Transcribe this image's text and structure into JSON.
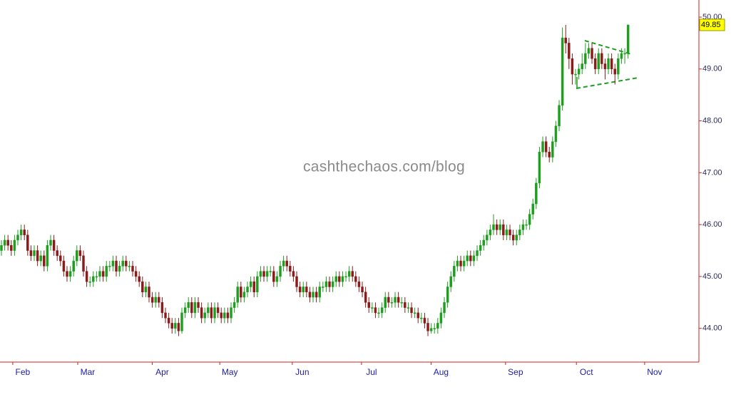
{
  "chart_data": {
    "type": "candlestick",
    "watermark": "cashthechaos.com/blog",
    "up_color": "#1e9e1e",
    "down_color": "#8b1a1a",
    "xlim": [
      -0.435,
      212.6
    ],
    "xticks": [
      {
        "value": 6.5,
        "label": "Feb"
      },
      {
        "value": 26.3,
        "label": "Mar"
      },
      {
        "value": 49,
        "label": "Apr"
      },
      {
        "value": 69.6,
        "label": "May"
      },
      {
        "value": 91.7,
        "label": "Jun"
      },
      {
        "value": 112.8,
        "label": "Jul"
      },
      {
        "value": 134,
        "label": "Aug"
      },
      {
        "value": 156.7,
        "label": "Sep"
      },
      {
        "value": 178.3,
        "label": "Oct"
      },
      {
        "value": 199.1,
        "label": "Nov"
      }
    ],
    "ylim": [
      43.35,
      50.33
    ],
    "yticks": [
      {
        "value": 44,
        "label": "44.00"
      },
      {
        "value": 45,
        "label": "45.00"
      },
      {
        "value": 46,
        "label": "46.00"
      },
      {
        "value": 47,
        "label": "47.00"
      },
      {
        "value": 48,
        "label": "48.00"
      },
      {
        "value": 49,
        "label": "49.00"
      },
      {
        "value": 50,
        "label": "50.00"
      }
    ],
    "last_price_label": "49.85",
    "open": [
      45.5,
      45.6,
      45.7,
      45.6,
      45.5,
      45.7,
      45.8,
      45.9,
      45.8,
      45.5,
      45.4,
      45.5,
      45.3,
      45.4,
      45.2,
      45.6,
      45.7,
      45.5,
      45.4,
      45.3,
      45.1,
      45.0,
      45.1,
      45.3,
      45.5,
      45.4,
      45.1,
      44.9,
      44.9,
      45.0,
      45.0,
      45.1,
      45.0,
      45.2,
      45.2,
      45.3,
      45.1,
      45.2,
      45.3,
      45.2,
      45.2,
      45.1,
      45.0,
      44.9,
      44.7,
      44.8,
      44.6,
      44.5,
      44.6,
      44.5,
      44.3,
      44.2,
      44.1,
      44.0,
      44.1,
      43.95,
      44.3,
      44.4,
      44.5,
      44.3,
      44.5,
      44.4,
      44.2,
      44.3,
      44.4,
      44.2,
      44.4,
      44.3,
      44.2,
      44.3,
      44.2,
      44.4,
      44.5,
      44.8,
      44.6,
      44.7,
      44.8,
      44.9,
      44.7,
      45.0,
      45.1,
      45.0,
      45.1,
      45.1,
      44.9,
      45.0,
      45.2,
      45.3,
      45.2,
      45.1,
      45.0,
      44.8,
      44.7,
      44.8,
      44.7,
      44.6,
      44.7,
      44.6,
      44.8,
      44.8,
      44.9,
      44.8,
      44.9,
      45.0,
      44.9,
      45.0,
      45.0,
      45.1,
      45.0,
      44.9,
      44.8,
      44.7,
      44.5,
      44.4,
      44.4,
      44.3,
      44.3,
      44.4,
      44.6,
      44.5,
      44.5,
      44.6,
      44.5,
      44.5,
      44.4,
      44.4,
      44.3,
      44.3,
      44.2,
      44.2,
      44.1,
      43.95,
      44.0,
      44.0,
      44.1,
      44.3,
      44.5,
      44.8,
      45.0,
      45.2,
      45.3,
      45.2,
      45.3,
      45.4,
      45.3,
      45.4,
      45.5,
      45.6,
      45.7,
      45.8,
      45.9,
      46.0,
      45.9,
      46.0,
      45.8,
      45.9,
      45.8,
      45.7,
      45.8,
      45.9,
      46.0,
      46.0,
      46.2,
      46.4,
      46.8,
      47.4,
      47.6,
      47.4,
      47.3,
      47.6,
      47.9,
      48.3,
      49.6,
      49.5,
      49.2,
      48.9,
      48.9,
      49.0,
      49.1,
      49.3,
      49.4,
      49.2,
      49.0,
      49.3,
      49.1,
      49.0,
      49.2,
      49.0,
      48.9,
      49.2,
      49.3,
      49.3
    ],
    "high": [
      45.7,
      45.8,
      45.8,
      45.7,
      45.8,
      45.9,
      46.0,
      46.0,
      45.9,
      45.6,
      45.6,
      45.6,
      45.5,
      45.5,
      45.7,
      45.8,
      45.8,
      45.6,
      45.5,
      45.4,
      45.2,
      45.2,
      45.4,
      45.6,
      45.6,
      45.5,
      45.2,
      45.0,
      45.1,
      45.1,
      45.2,
      45.2,
      45.3,
      45.3,
      45.4,
      45.4,
      45.3,
      45.4,
      45.4,
      45.3,
      45.3,
      45.2,
      45.1,
      45.0,
      44.9,
      44.9,
      44.7,
      44.7,
      44.7,
      44.6,
      44.4,
      44.3,
      44.2,
      44.2,
      44.2,
      44.4,
      44.5,
      44.6,
      44.6,
      44.6,
      44.6,
      44.5,
      44.4,
      44.5,
      44.5,
      44.5,
      44.5,
      44.4,
      44.4,
      44.4,
      44.5,
      44.6,
      44.9,
      44.9,
      44.8,
      44.9,
      45.0,
      45.0,
      45.1,
      45.2,
      45.2,
      45.2,
      45.2,
      45.2,
      45.1,
      45.3,
      45.4,
      45.4,
      45.3,
      45.2,
      45.1,
      44.9,
      44.9,
      44.9,
      44.8,
      44.8,
      44.8,
      44.9,
      44.9,
      45.0,
      45.0,
      45.0,
      45.1,
      45.1,
      45.1,
      45.1,
      45.2,
      45.2,
      45.1,
      45.0,
      44.9,
      44.8,
      44.6,
      44.5,
      44.5,
      44.4,
      44.5,
      44.7,
      44.7,
      44.6,
      44.7,
      44.7,
      44.6,
      44.6,
      44.5,
      44.5,
      44.4,
      44.4,
      44.3,
      44.3,
      44.2,
      44.1,
      44.1,
      44.2,
      44.4,
      44.6,
      44.9,
      45.1,
      45.3,
      45.4,
      45.4,
      45.4,
      45.5,
      45.5,
      45.5,
      45.6,
      45.7,
      45.8,
      45.9,
      46.0,
      46.2,
      46.1,
      46.1,
      46.1,
      46.0,
      46.0,
      45.9,
      45.9,
      46.0,
      46.1,
      46.1,
      46.3,
      46.5,
      46.9,
      47.5,
      47.7,
      47.7,
      47.5,
      47.7,
      48.0,
      48.4,
      49.8,
      49.85,
      49.6,
      49.3,
      49.0,
      49.1,
      49.3,
      49.5,
      49.5,
      49.5,
      49.3,
      49.4,
      49.4,
      49.2,
      49.3,
      49.3,
      49.1,
      49.3,
      49.4,
      49.4,
      49.85
    ],
    "low": [
      45.4,
      45.5,
      45.5,
      45.4,
      45.4,
      45.6,
      45.7,
      45.7,
      45.4,
      45.3,
      45.3,
      45.2,
      45.2,
      45.1,
      45.1,
      45.5,
      45.4,
      45.3,
      45.2,
      45.0,
      44.9,
      44.9,
      45.0,
      45.2,
      45.3,
      45.0,
      44.8,
      44.8,
      44.8,
      44.9,
      44.9,
      44.9,
      44.9,
      45.1,
      45.1,
      45.0,
      45.0,
      45.1,
      45.1,
      45.1,
      45.0,
      44.9,
      44.8,
      44.6,
      44.6,
      44.5,
      44.4,
      44.4,
      44.4,
      44.2,
      44.1,
      44.0,
      43.9,
      43.9,
      43.85,
      43.9,
      44.2,
      44.3,
      44.2,
      44.2,
      44.3,
      44.1,
      44.1,
      44.2,
      44.1,
      44.1,
      44.2,
      44.1,
      44.1,
      44.1,
      44.1,
      44.3,
      44.4,
      44.5,
      44.5,
      44.6,
      44.7,
      44.6,
      44.6,
      44.9,
      44.9,
      44.9,
      45.0,
      44.8,
      44.8,
      44.9,
      45.1,
      45.1,
      45.0,
      44.9,
      44.7,
      44.6,
      44.6,
      44.6,
      44.5,
      44.5,
      44.5,
      44.5,
      44.7,
      44.7,
      44.7,
      44.7,
      44.8,
      44.8,
      44.8,
      44.9,
      44.9,
      44.9,
      44.8,
      44.7,
      44.6,
      44.4,
      44.3,
      44.3,
      44.2,
      44.2,
      44.2,
      44.3,
      44.4,
      44.4,
      44.4,
      44.4,
      44.4,
      44.3,
      44.3,
      44.2,
      44.2,
      44.1,
      44.1,
      44.0,
      43.85,
      43.9,
      43.9,
      43.9,
      44.0,
      44.2,
      44.4,
      44.7,
      44.9,
      45.1,
      45.1,
      45.1,
      45.2,
      45.2,
      45.2,
      45.3,
      45.4,
      45.5,
      45.6,
      45.7,
      45.8,
      45.8,
      45.8,
      45.7,
      45.7,
      45.7,
      45.6,
      45.6,
      45.7,
      45.8,
      45.9,
      45.9,
      46.1,
      46.3,
      46.7,
      47.3,
      47.3,
      47.2,
      47.2,
      47.5,
      47.8,
      48.2,
      49.3,
      49.0,
      48.7,
      48.7,
      48.8,
      48.9,
      49.0,
      49.2,
      49.1,
      48.9,
      48.9,
      49.0,
      48.8,
      48.9,
      48.9,
      48.7,
      48.8,
      49.1,
      49.1,
      49.2
    ],
    "close": [
      45.6,
      45.7,
      45.6,
      45.5,
      45.7,
      45.8,
      45.9,
      45.8,
      45.5,
      45.4,
      45.5,
      45.3,
      45.4,
      45.2,
      45.6,
      45.7,
      45.5,
      45.4,
      45.3,
      45.1,
      45.0,
      45.1,
      45.3,
      45.5,
      45.4,
      45.1,
      44.9,
      44.9,
      45.0,
      45.0,
      45.1,
      45.0,
      45.2,
      45.2,
      45.3,
      45.1,
      45.2,
      45.3,
      45.2,
      45.2,
      45.1,
      45.0,
      44.9,
      44.7,
      44.8,
      44.6,
      44.5,
      44.6,
      44.5,
      44.3,
      44.2,
      44.1,
      44.0,
      44.1,
      43.95,
      44.3,
      44.4,
      44.5,
      44.3,
      44.5,
      44.4,
      44.2,
      44.3,
      44.4,
      44.2,
      44.4,
      44.3,
      44.2,
      44.3,
      44.2,
      44.4,
      44.5,
      44.8,
      44.6,
      44.7,
      44.8,
      44.9,
      44.7,
      45.0,
      45.1,
      45.0,
      45.1,
      45.1,
      44.9,
      45.0,
      45.2,
      45.3,
      45.2,
      45.1,
      45.0,
      44.8,
      44.7,
      44.8,
      44.7,
      44.6,
      44.7,
      44.6,
      44.8,
      44.8,
      44.9,
      44.8,
      44.9,
      45.0,
      44.9,
      45.0,
      45.0,
      45.1,
      45.0,
      44.9,
      44.8,
      44.7,
      44.5,
      44.4,
      44.4,
      44.3,
      44.3,
      44.4,
      44.6,
      44.5,
      44.5,
      44.6,
      44.5,
      44.5,
      44.4,
      44.4,
      44.3,
      44.3,
      44.2,
      44.2,
      44.1,
      43.95,
      44.0,
      44.0,
      44.1,
      44.3,
      44.5,
      44.8,
      45.0,
      45.2,
      45.3,
      45.2,
      45.3,
      45.4,
      45.3,
      45.4,
      45.5,
      45.6,
      45.7,
      45.8,
      45.9,
      46.0,
      45.9,
      46.0,
      45.8,
      45.9,
      45.8,
      45.7,
      45.8,
      45.9,
      46.0,
      46.0,
      46.2,
      46.4,
      46.8,
      47.4,
      47.6,
      47.4,
      47.3,
      47.6,
      47.9,
      48.3,
      49.6,
      49.5,
      49.2,
      48.9,
      48.9,
      49.0,
      49.1,
      49.3,
      49.4,
      49.2,
      49.0,
      49.3,
      49.1,
      49.0,
      49.2,
      49.0,
      48.9,
      49.2,
      49.3,
      49.3,
      49.85
    ]
  }
}
